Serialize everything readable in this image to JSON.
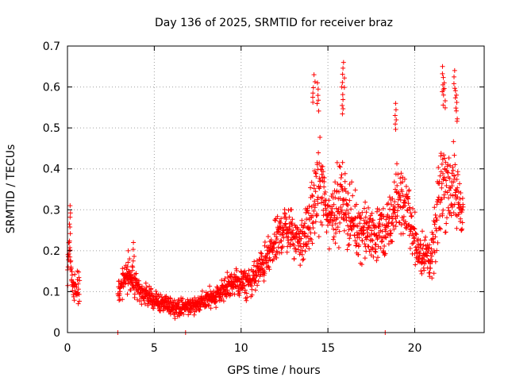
{
  "chart_data": {
    "type": "scatter",
    "title": "Day 136 of 2025, SRMTID for receiver braz",
    "xlabel": "GPS time / hours",
    "ylabel": "SRMTID / TECUs",
    "xlim": [
      0,
      24
    ],
    "ylim": [
      0,
      0.7
    ],
    "xticks": [
      0,
      5,
      10,
      15,
      20
    ],
    "yticks": [
      0,
      0.1,
      0.2,
      0.3,
      0.4,
      0.5,
      0.6,
      0.7
    ],
    "xtick_labels": [
      "0",
      "5",
      "10",
      "15",
      "20"
    ],
    "ytick_labels": [
      "0",
      "0.1",
      "0.2",
      "0.3",
      "0.4",
      "0.5",
      "0.6",
      "0.7"
    ],
    "grid": true,
    "marker": "+",
    "series": [
      {
        "name": "SRMTID",
        "color": "#ff0000",
        "profile": [
          {
            "x": 0.0,
            "y": 0.13,
            "spread": 0.05
          },
          {
            "x": 0.1,
            "y": 0.22,
            "spread": 0.06
          },
          {
            "x": 0.3,
            "y": 0.12,
            "spread": 0.05
          },
          {
            "x": 0.6,
            "y": 0.1,
            "spread": 0.05
          },
          {
            "x": 3.0,
            "y": 0.1,
            "spread": 0.05
          },
          {
            "x": 3.3,
            "y": 0.14,
            "spread": 0.05
          },
          {
            "x": 3.8,
            "y": 0.12,
            "spread": 0.05
          },
          {
            "x": 4.5,
            "y": 0.09,
            "spread": 0.04
          },
          {
            "x": 5.5,
            "y": 0.07,
            "spread": 0.03
          },
          {
            "x": 6.5,
            "y": 0.06,
            "spread": 0.03
          },
          {
            "x": 7.5,
            "y": 0.07,
            "spread": 0.03
          },
          {
            "x": 8.5,
            "y": 0.09,
            "spread": 0.04
          },
          {
            "x": 9.5,
            "y": 0.12,
            "spread": 0.05
          },
          {
            "x": 10.5,
            "y": 0.12,
            "spread": 0.05
          },
          {
            "x": 11.5,
            "y": 0.18,
            "spread": 0.07
          },
          {
            "x": 12.5,
            "y": 0.26,
            "spread": 0.08
          },
          {
            "x": 13.5,
            "y": 0.22,
            "spread": 0.08
          },
          {
            "x": 14.2,
            "y": 0.3,
            "spread": 0.12
          },
          {
            "x": 14.5,
            "y": 0.38,
            "spread": 0.16
          },
          {
            "x": 15.0,
            "y": 0.28,
            "spread": 0.1
          },
          {
            "x": 15.8,
            "y": 0.33,
            "spread": 0.14
          },
          {
            "x": 16.5,
            "y": 0.26,
            "spread": 0.1
          },
          {
            "x": 17.5,
            "y": 0.24,
            "spread": 0.1
          },
          {
            "x": 18.5,
            "y": 0.25,
            "spread": 0.1
          },
          {
            "x": 19.0,
            "y": 0.33,
            "spread": 0.12
          },
          {
            "x": 19.6,
            "y": 0.3,
            "spread": 0.1
          },
          {
            "x": 20.2,
            "y": 0.2,
            "spread": 0.08
          },
          {
            "x": 21.0,
            "y": 0.18,
            "spread": 0.08
          },
          {
            "x": 21.6,
            "y": 0.38,
            "spread": 0.18
          },
          {
            "x": 22.2,
            "y": 0.35,
            "spread": 0.15
          },
          {
            "x": 22.8,
            "y": 0.3,
            "spread": 0.08
          }
        ],
        "gaps": [
          [
            0.7,
            2.9
          ]
        ],
        "isolated_points": [
          {
            "x": 2.9,
            "y": 0.0
          },
          {
            "x": 6.8,
            "y": 0.0
          },
          {
            "x": 18.3,
            "y": 0.0
          }
        ],
        "peaks": [
          {
            "x": 0.15,
            "y": 0.31
          },
          {
            "x": 3.5,
            "y": 0.2
          },
          {
            "x": 3.8,
            "y": 0.22
          },
          {
            "x": 14.2,
            "y": 0.63
          },
          {
            "x": 14.4,
            "y": 0.61
          },
          {
            "x": 15.9,
            "y": 0.66
          },
          {
            "x": 15.8,
            "y": 0.6
          },
          {
            "x": 18.9,
            "y": 0.56
          },
          {
            "x": 21.6,
            "y": 0.65
          },
          {
            "x": 21.7,
            "y": 0.61
          },
          {
            "x": 22.3,
            "y": 0.64
          },
          {
            "x": 22.4,
            "y": 0.58
          }
        ]
      }
    ]
  }
}
